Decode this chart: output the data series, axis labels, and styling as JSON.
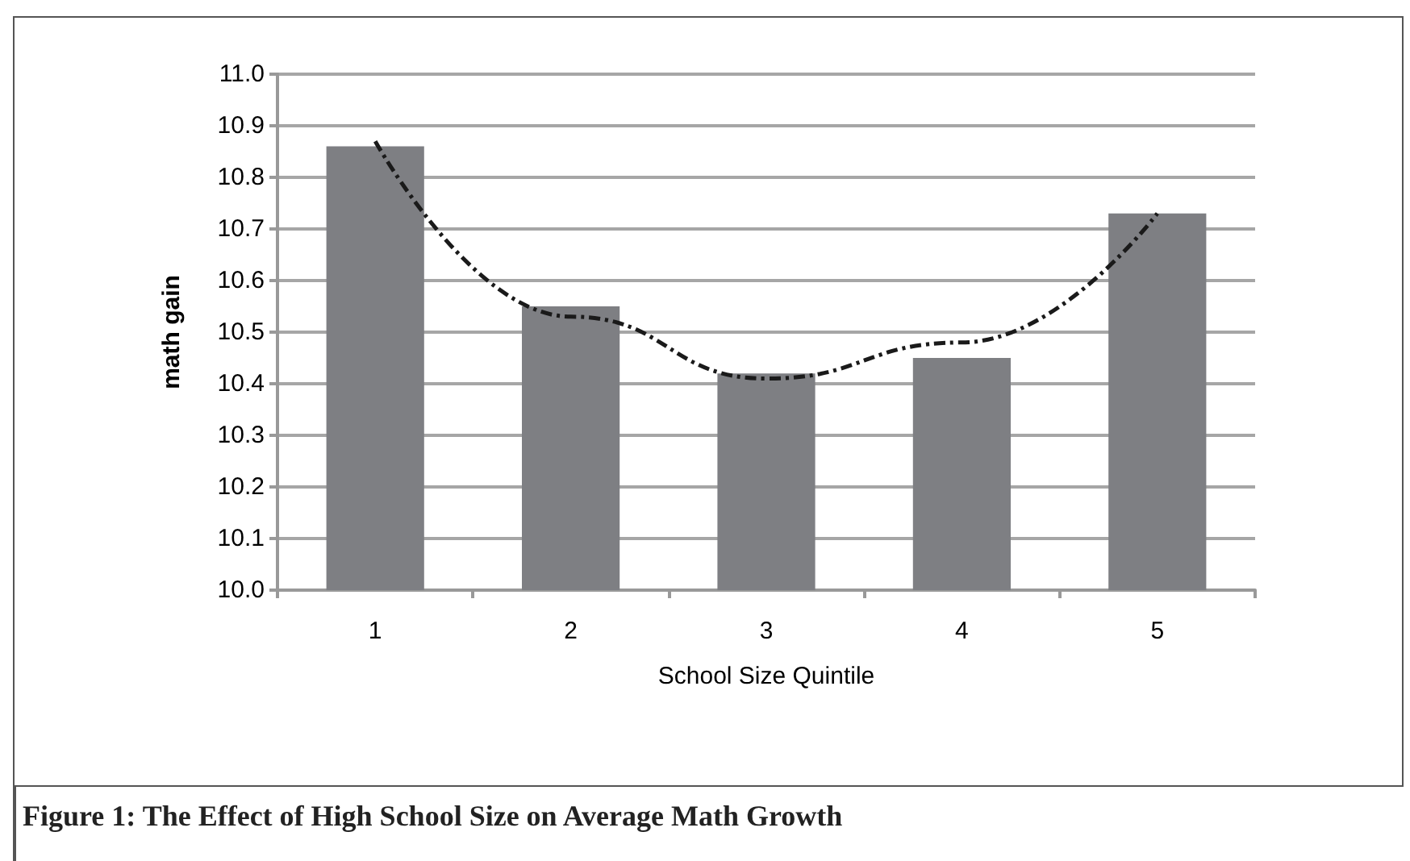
{
  "chart_data": {
    "type": "bar",
    "title": "Figure 1: The Effect of High School Size on Average Math Growth",
    "xlabel": "School Size Quintile",
    "ylabel": "math gain",
    "categories": [
      "1",
      "2",
      "3",
      "4",
      "5"
    ],
    "series": [
      {
        "color": "#7e7f83",
        "values": [
          10.86,
          10.55,
          10.42,
          10.45,
          10.73
        ]
      },
      {
        "type": "line",
        "color": "#1a1a1a",
        "line_style": "dashed",
        "values": [
          10.87,
          10.53,
          10.41,
          10.48,
          10.73
        ]
      }
    ],
    "ylim": [
      10.0,
      11.0
    ],
    "yticks": [
      {
        "value": 10.0,
        "label": "10.0"
      },
      10.1,
      10.2,
      10.3,
      10.4,
      10.5,
      10.6,
      10.7,
      10.8,
      10.9,
      {
        "value": 11.0,
        "label": "11.0"
      }
    ],
    "grid": "y"
  }
}
